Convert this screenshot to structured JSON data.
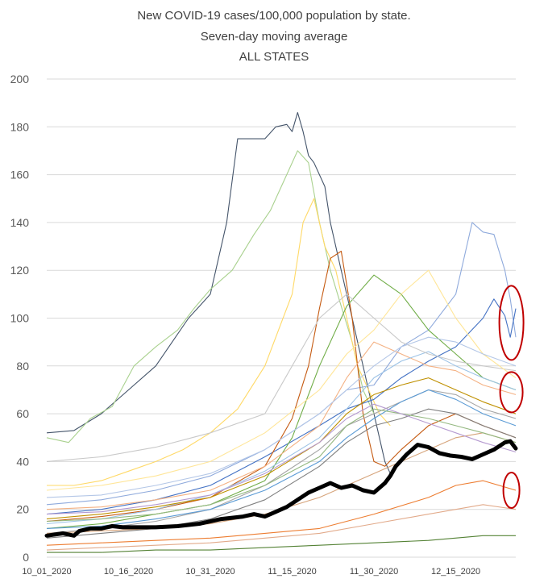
{
  "chart_data": {
    "type": "line",
    "title_lines": [
      "New COVID-19 cases/100,000 population by state.",
      "Seven-day moving average",
      "ALL STATES"
    ],
    "xlabel": "",
    "ylabel": "",
    "ylim": [
      0,
      200
    ],
    "y_ticks": [
      0,
      20,
      40,
      60,
      80,
      100,
      120,
      140,
      160,
      180,
      200
    ],
    "x_tick_labels": [
      "10_01_2020",
      "10_16_2020",
      "10_31_2020",
      "11_15_2020",
      "11_30_2020",
      "12_15_2020"
    ],
    "x_tick_days": [
      0,
      15,
      30,
      45,
      60,
      75
    ],
    "x_days_span": 86,
    "grid": true,
    "legend": "none",
    "highlight_color": "#c00000",
    "average_series": {
      "color": "#000000",
      "x": [
        0,
        3,
        5,
        6,
        8,
        10,
        12,
        14,
        16,
        18,
        20,
        24,
        28,
        32,
        34,
        36,
        38,
        40,
        42,
        44,
        46,
        48,
        50,
        52,
        54,
        56,
        58,
        60,
        61,
        62,
        63,
        64,
        66,
        68,
        70,
        72,
        74,
        76,
        78,
        80,
        82,
        84,
        85,
        86
      ],
      "values": [
        9,
        10,
        9,
        11,
        12,
        12,
        13,
        12.5,
        12.5,
        12.5,
        12.5,
        13,
        14,
        16,
        16.5,
        17,
        18,
        17,
        19,
        21,
        24,
        27,
        29,
        31,
        29,
        30,
        28,
        27,
        29,
        31,
        34,
        38,
        43,
        47,
        46,
        43.5,
        42.5,
        42,
        41,
        43,
        45,
        48,
        48.5,
        45.5
      ]
    },
    "series": [
      {
        "color": "#44546a",
        "x": [
          0,
          5,
          10,
          15,
          20,
          23,
          26,
          28,
          30,
          33,
          35,
          38,
          40,
          42,
          44,
          45,
          46,
          47,
          48,
          49,
          51,
          52,
          54,
          56,
          58,
          60,
          62,
          63
        ],
        "values": [
          52,
          53,
          60,
          70,
          80,
          90,
          100,
          105,
          110,
          140,
          175,
          175,
          175,
          180,
          181,
          178,
          186,
          178,
          168,
          165,
          155,
          140,
          120,
          100,
          80,
          60,
          40,
          35
        ]
      },
      {
        "color": "#a9d18e",
        "x": [
          0,
          4,
          8,
          12,
          16,
          20,
          24,
          27,
          30,
          34,
          38,
          41,
          44,
          46,
          48,
          50,
          52,
          54,
          56,
          58,
          60
        ],
        "values": [
          50,
          48,
          58,
          63,
          80,
          88,
          95,
          104,
          112,
          120,
          135,
          145,
          160,
          170,
          165,
          140,
          120,
          105,
          90,
          70,
          60
        ]
      },
      {
        "color": "#ffd966",
        "x": [
          0,
          5,
          10,
          15,
          20,
          25,
          30,
          35,
          40,
          45,
          47,
          49,
          51,
          53,
          55,
          57,
          59,
          61,
          63
        ],
        "values": [
          30,
          30,
          32,
          36,
          40,
          45,
          52,
          62,
          80,
          110,
          140,
          150,
          130,
          120,
          100,
          80,
          70,
          60,
          55
        ]
      },
      {
        "color": "#8faadc",
        "x": [
          0,
          10,
          20,
          30,
          40,
          50,
          55,
          60,
          65,
          70,
          75,
          78,
          80,
          82,
          84,
          85,
          86
        ],
        "values": [
          22,
          24,
          28,
          34,
          45,
          60,
          70,
          72,
          88,
          95,
          110,
          140,
          136,
          135,
          120,
          108,
          92
        ]
      },
      {
        "color": "#4472c4",
        "x": [
          0,
          10,
          20,
          30,
          40,
          50,
          55,
          60,
          65,
          70,
          75,
          80,
          82,
          84,
          85,
          86
        ],
        "values": [
          18,
          20,
          24,
          30,
          42,
          55,
          62,
          66,
          75,
          82,
          88,
          100,
          108,
          101,
          92,
          104
        ]
      },
      {
        "color": "#c55a11",
        "x": [
          0,
          10,
          20,
          30,
          40,
          45,
          48,
          50,
          52,
          54,
          56,
          58,
          60,
          62,
          65,
          70,
          75,
          80,
          86
        ],
        "values": [
          15,
          17,
          20,
          25,
          38,
          58,
          80,
          104,
          125,
          128,
          100,
          60,
          40,
          38,
          45,
          55,
          60,
          55,
          50
        ]
      },
      {
        "color": "#70ad47",
        "x": [
          0,
          10,
          20,
          30,
          40,
          45,
          50,
          55,
          60,
          65,
          70,
          75,
          80,
          86
        ],
        "values": [
          12,
          14,
          18,
          22,
          32,
          50,
          80,
          105,
          118,
          110,
          95,
          85,
          75,
          70
        ]
      },
      {
        "color": "#f4b183",
        "x": [
          0,
          10,
          20,
          30,
          40,
          50,
          55,
          60,
          65,
          70,
          75,
          80,
          86
        ],
        "values": [
          20,
          21,
          24,
          28,
          38,
          55,
          75,
          90,
          85,
          80,
          78,
          72,
          68
        ]
      },
      {
        "color": "#9dc3e6",
        "x": [
          0,
          10,
          20,
          30,
          40,
          50,
          55,
          60,
          65,
          70,
          75,
          80,
          86
        ],
        "values": [
          14,
          16,
          20,
          26,
          36,
          50,
          62,
          75,
          82,
          86,
          80,
          75,
          70
        ]
      },
      {
        "color": "#bf9000",
        "x": [
          0,
          10,
          20,
          30,
          40,
          50,
          55,
          60,
          65,
          70,
          75,
          80,
          86
        ],
        "values": [
          16,
          18,
          21,
          25,
          34,
          48,
          60,
          68,
          72,
          75,
          70,
          65,
          60
        ]
      },
      {
        "color": "#a5a5a5",
        "x": [
          0,
          10,
          20,
          30,
          40,
          50,
          55,
          60,
          65,
          70,
          75,
          80,
          86
        ],
        "values": [
          10,
          12,
          15,
          20,
          30,
          45,
          55,
          60,
          65,
          70,
          68,
          62,
          58
        ]
      },
      {
        "color": "#7f7f7f",
        "x": [
          0,
          10,
          20,
          30,
          40,
          50,
          55,
          60,
          65,
          70,
          75,
          80,
          86
        ],
        "values": [
          8,
          10,
          12,
          16,
          24,
          38,
          48,
          55,
          58,
          62,
          60,
          55,
          50
        ]
      },
      {
        "color": "#5b9bd5",
        "x": [
          0,
          10,
          20,
          30,
          40,
          50,
          55,
          60,
          65,
          70,
          75,
          80,
          86
        ],
        "values": [
          12,
          13,
          16,
          20,
          28,
          40,
          50,
          58,
          65,
          70,
          66,
          60,
          55
        ]
      },
      {
        "color": "#ed7d31",
        "x": [
          0,
          10,
          20,
          30,
          40,
          50,
          60,
          70,
          75,
          80,
          86
        ],
        "values": [
          5,
          6,
          7,
          8,
          10,
          12,
          18,
          25,
          30,
          32,
          28
        ]
      },
      {
        "color": "#e2aa8a",
        "x": [
          0,
          10,
          20,
          30,
          40,
          50,
          60,
          70,
          75,
          80,
          86
        ],
        "values": [
          3,
          4,
          5,
          6,
          8,
          10,
          14,
          18,
          20,
          22,
          20
        ]
      },
      {
        "color": "#548235",
        "x": [
          0,
          10,
          20,
          30,
          40,
          50,
          60,
          70,
          80,
          86
        ],
        "values": [
          2,
          2,
          3,
          3,
          4,
          5,
          6,
          7,
          9,
          9
        ]
      },
      {
        "color": "#c9c9c9",
        "x": [
          0,
          10,
          20,
          30,
          40,
          45,
          50,
          55,
          60,
          65,
          70,
          75,
          80,
          86
        ],
        "values": [
          40,
          42,
          46,
          52,
          60,
          80,
          100,
          110,
          100,
          90,
          85,
          82,
          80,
          78
        ]
      },
      {
        "color": "#ffe699",
        "x": [
          0,
          10,
          20,
          30,
          40,
          50,
          55,
          60,
          65,
          70,
          75,
          80,
          86
        ],
        "values": [
          28,
          30,
          34,
          40,
          52,
          70,
          85,
          95,
          110,
          120,
          100,
          85,
          75
        ]
      },
      {
        "color": "#b4c7e7",
        "x": [
          0,
          10,
          20,
          30,
          40,
          50,
          55,
          60,
          65,
          70,
          75,
          80,
          86
        ],
        "values": [
          25,
          26,
          30,
          35,
          45,
          60,
          70,
          80,
          88,
          92,
          90,
          85,
          80
        ]
      },
      {
        "color": "#d6a47b",
        "x": [
          0,
          10,
          20,
          30,
          40,
          50,
          60,
          70,
          75,
          80,
          86
        ],
        "values": [
          10,
          11,
          12,
          14,
          18,
          25,
          35,
          45,
          50,
          52,
          48
        ]
      },
      {
        "color": "#94b880",
        "x": [
          0,
          10,
          20,
          30,
          40,
          50,
          55,
          60,
          65,
          70,
          75,
          80,
          86
        ],
        "values": [
          15,
          16,
          18,
          22,
          30,
          42,
          55,
          62,
          60,
          58,
          55,
          52,
          48
        ]
      },
      {
        "color": "#b59ad0",
        "x": [
          0,
          10,
          20,
          30,
          40,
          50,
          55,
          60,
          65,
          70,
          75,
          80,
          86
        ],
        "values": [
          18,
          19,
          22,
          26,
          35,
          48,
          58,
          64,
          60,
          56,
          52,
          48,
          44
        ]
      }
    ]
  }
}
